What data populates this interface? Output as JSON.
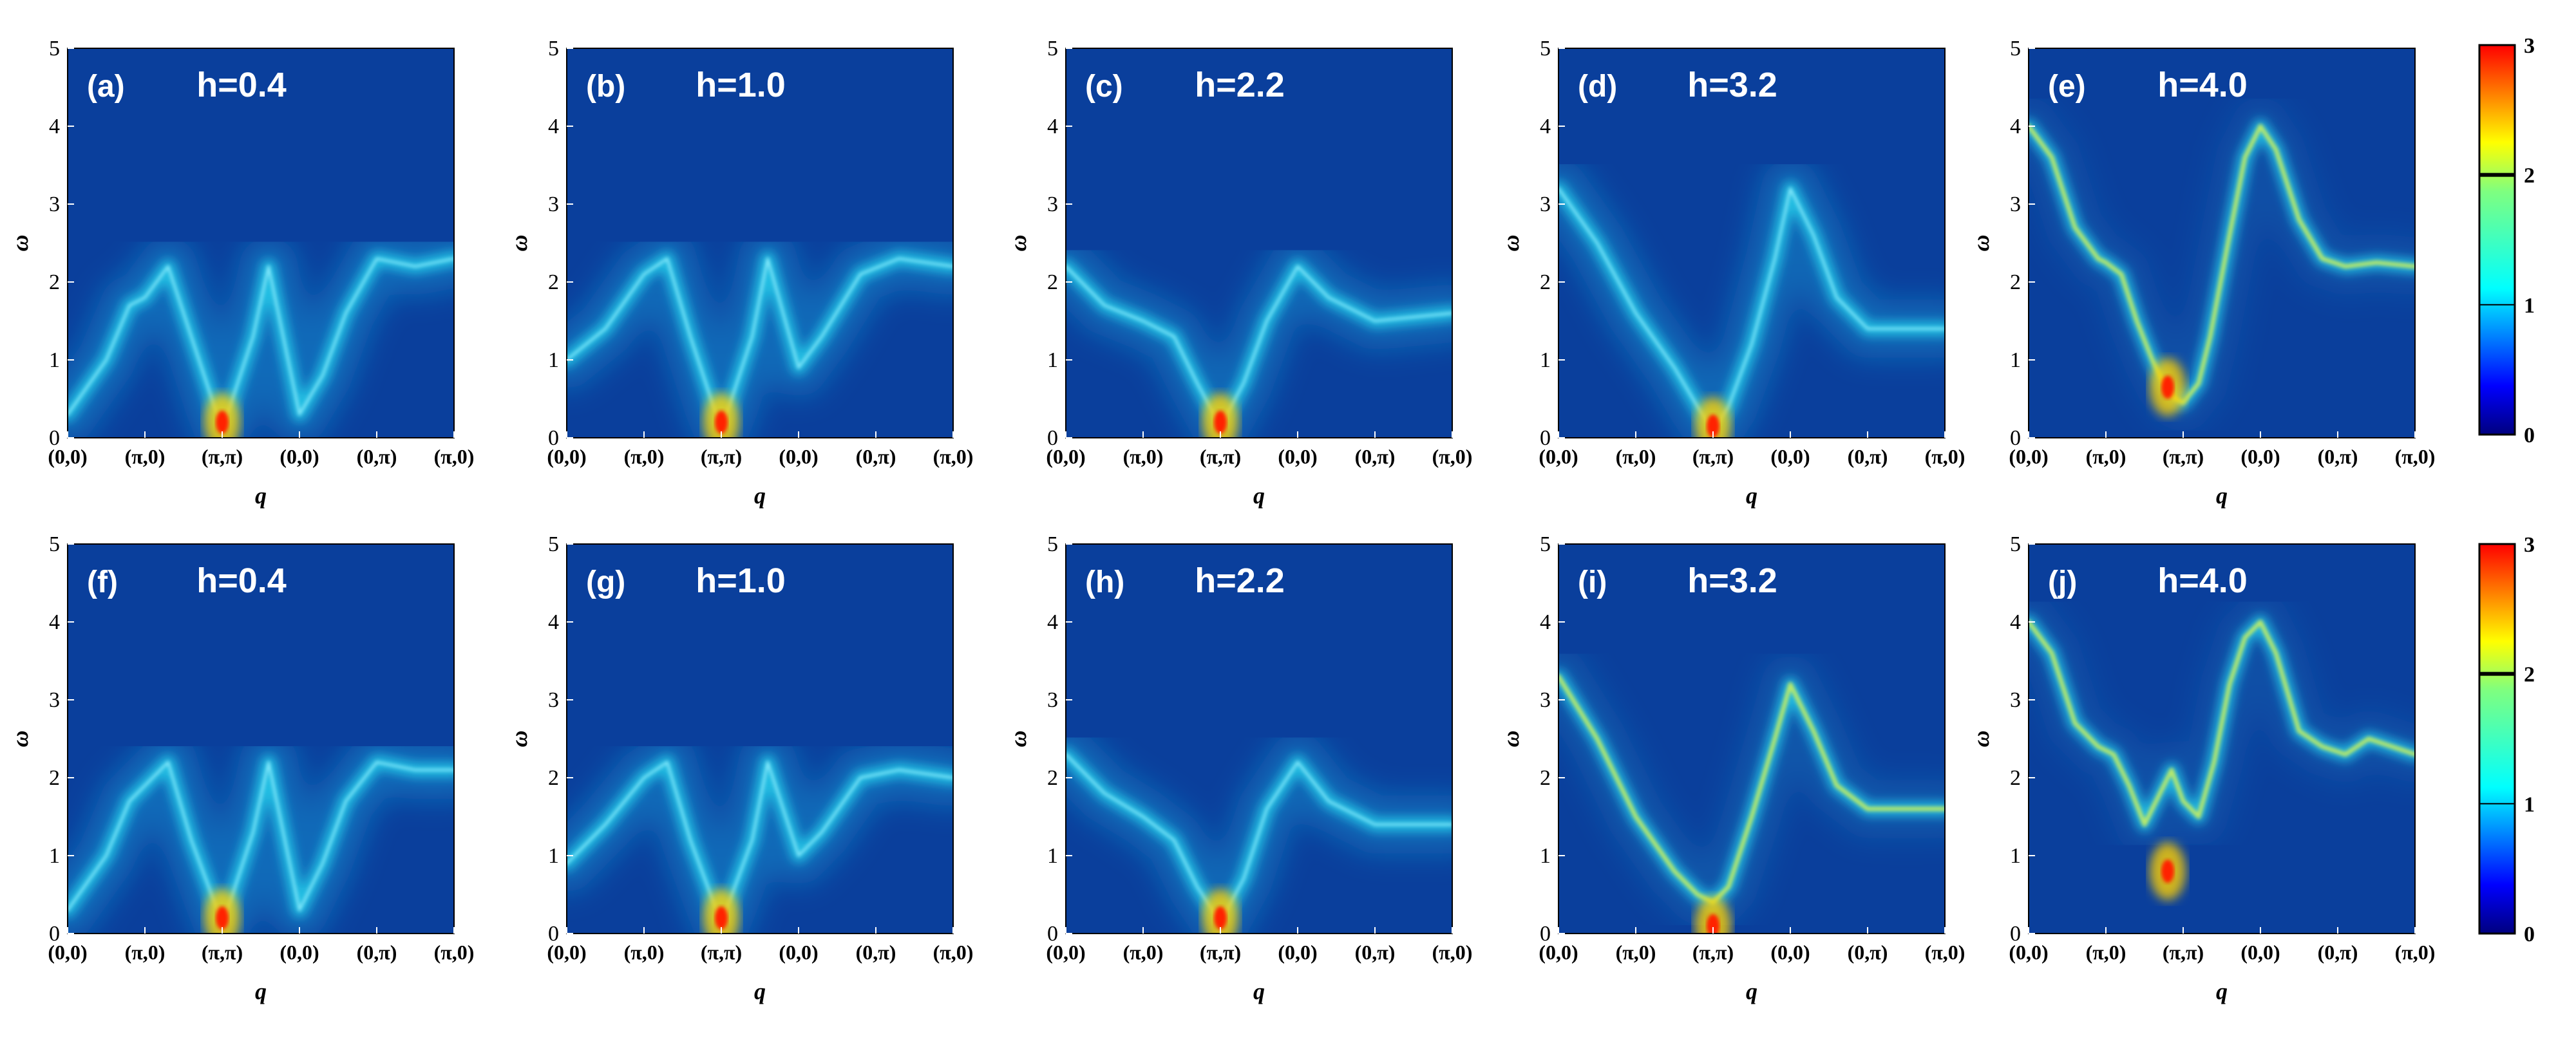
{
  "chart_data": [
    {
      "type": "heatmap",
      "panel": "(a)",
      "title": "h=0.4",
      "xlabel": "q",
      "ylabel": "ω",
      "xticks": [
        "(0,0)",
        "(π,0)",
        "(π,π)",
        "(0,0)",
        "(0,π)",
        "(π,0)"
      ],
      "yticks": [
        0,
        1,
        2,
        3,
        4,
        5
      ],
      "ylim": [
        0,
        5
      ],
      "ridge": [
        [
          0,
          0.3
        ],
        [
          0.5,
          1.0
        ],
        [
          0.8,
          1.7
        ],
        [
          1.0,
          1.8
        ],
        [
          1.3,
          2.2
        ],
        [
          1.6,
          1.3
        ],
        [
          1.9,
          0.4
        ],
        [
          2.0,
          0.15
        ],
        [
          2.1,
          0.4
        ],
        [
          2.4,
          1.3
        ],
        [
          2.6,
          2.2
        ],
        [
          3.0,
          0.3
        ],
        [
          3.3,
          0.8
        ],
        [
          3.6,
          1.6
        ],
        [
          4.0,
          2.3
        ],
        [
          4.5,
          2.2
        ],
        [
          5.0,
          2.3
        ]
      ],
      "peak": [
        2.0,
        0.2
      ],
      "glow": 0.9
    },
    {
      "type": "heatmap",
      "panel": "(b)",
      "title": "h=1.0",
      "xlabel": "q",
      "ylabel": "ω",
      "xticks": [
        "(0,0)",
        "(π,0)",
        "(π,π)",
        "(0,0)",
        "(0,π)",
        "(π,0)"
      ],
      "yticks": [
        0,
        1,
        2,
        3,
        4,
        5
      ],
      "ylim": [
        0,
        5
      ],
      "ridge": [
        [
          0,
          1.0
        ],
        [
          0.5,
          1.4
        ],
        [
          1.0,
          2.1
        ],
        [
          1.3,
          2.3
        ],
        [
          1.6,
          1.3
        ],
        [
          1.9,
          0.4
        ],
        [
          2.0,
          0.15
        ],
        [
          2.1,
          0.4
        ],
        [
          2.4,
          1.3
        ],
        [
          2.6,
          2.3
        ],
        [
          3.0,
          0.9
        ],
        [
          3.3,
          1.3
        ],
        [
          3.8,
          2.1
        ],
        [
          4.3,
          2.3
        ],
        [
          5.0,
          2.2
        ]
      ],
      "peak": [
        2.0,
        0.2
      ],
      "glow": 0.85
    },
    {
      "type": "heatmap",
      "panel": "(c)",
      "title": "h=2.2",
      "xlabel": "q",
      "ylabel": "ω",
      "xticks": [
        "(0,0)",
        "(π,0)",
        "(π,π)",
        "(0,0)",
        "(0,π)",
        "(π,0)"
      ],
      "yticks": [
        0,
        1,
        2,
        3,
        4,
        5
      ],
      "ylim": [
        0,
        5
      ],
      "ridge": [
        [
          0,
          2.2
        ],
        [
          0.5,
          1.7
        ],
        [
          1.0,
          1.5
        ],
        [
          1.4,
          1.3
        ],
        [
          1.7,
          0.7
        ],
        [
          2.0,
          0.15
        ],
        [
          2.3,
          0.7
        ],
        [
          2.6,
          1.5
        ],
        [
          3.0,
          2.2
        ],
        [
          3.4,
          1.8
        ],
        [
          4.0,
          1.5
        ],
        [
          5.0,
          1.6
        ]
      ],
      "peak": [
        2.0,
        0.2
      ],
      "glow": 0.8
    },
    {
      "type": "heatmap",
      "panel": "(d)",
      "title": "h=3.2",
      "xlabel": "q",
      "ylabel": "ω",
      "xticks": [
        "(0,0)",
        "(π,0)",
        "(π,π)",
        "(0,0)",
        "(0,π)",
        "(π,0)"
      ],
      "yticks": [
        0,
        1,
        2,
        3,
        4,
        5
      ],
      "ylim": [
        0,
        5
      ],
      "ridge": [
        [
          0,
          3.2
        ],
        [
          0.5,
          2.5
        ],
        [
          1.0,
          1.6
        ],
        [
          1.5,
          0.9
        ],
        [
          1.8,
          0.4
        ],
        [
          2.0,
          0.1
        ],
        [
          2.2,
          0.4
        ],
        [
          2.5,
          1.2
        ],
        [
          2.8,
          2.3
        ],
        [
          3.0,
          3.2
        ],
        [
          3.3,
          2.6
        ],
        [
          3.6,
          1.8
        ],
        [
          4.0,
          1.4
        ],
        [
          5.0,
          1.4
        ]
      ],
      "peak": [
        2.0,
        0.15
      ],
      "glow": 0.8
    },
    {
      "type": "heatmap",
      "panel": "(e)",
      "title": "h=4.0",
      "xlabel": "q",
      "ylabel": "ω",
      "xticks": [
        "(0,0)",
        "(π,0)",
        "(π,π)",
        "(0,0)",
        "(0,π)",
        "(π,0)"
      ],
      "yticks": [
        0,
        1,
        2,
        3,
        4,
        5
      ],
      "ylim": [
        0,
        5
      ],
      "ridge": [
        [
          0,
          4.0
        ],
        [
          0.3,
          3.6
        ],
        [
          0.6,
          2.7
        ],
        [
          0.9,
          2.3
        ],
        [
          1.0,
          2.25
        ],
        [
          1.2,
          2.1
        ],
        [
          1.4,
          1.5
        ],
        [
          1.6,
          1.0
        ],
        [
          1.75,
          0.7
        ],
        [
          1.9,
          0.5
        ],
        [
          2.0,
          0.45
        ],
        [
          2.2,
          0.7
        ],
        [
          2.35,
          1.3
        ],
        [
          2.6,
          2.6
        ],
        [
          2.8,
          3.6
        ],
        [
          3.0,
          4.0
        ],
        [
          3.2,
          3.7
        ],
        [
          3.5,
          2.8
        ],
        [
          3.8,
          2.3
        ],
        [
          4.1,
          2.2
        ],
        [
          4.5,
          2.25
        ],
        [
          5.0,
          2.2
        ]
      ],
      "peak": [
        1.8,
        0.65
      ],
      "glow": 0.15
    },
    {
      "type": "heatmap",
      "panel": "(f)",
      "title": "h=0.4",
      "xlabel": "q",
      "ylabel": "ω",
      "xticks": [
        "(0,0)",
        "(π,0)",
        "(π,π)",
        "(0,0)",
        "(0,π)",
        "(π,0)"
      ],
      "yticks": [
        0,
        1,
        2,
        3,
        4,
        5
      ],
      "ylim": [
        0,
        5
      ],
      "ridge": [
        [
          0,
          0.3
        ],
        [
          0.5,
          1.0
        ],
        [
          0.8,
          1.7
        ],
        [
          1.0,
          1.9
        ],
        [
          1.3,
          2.2
        ],
        [
          1.6,
          1.2
        ],
        [
          1.9,
          0.4
        ],
        [
          2.0,
          0.15
        ],
        [
          2.1,
          0.4
        ],
        [
          2.4,
          1.3
        ],
        [
          2.6,
          2.2
        ],
        [
          3.0,
          0.3
        ],
        [
          3.3,
          0.9
        ],
        [
          3.6,
          1.7
        ],
        [
          4.0,
          2.2
        ],
        [
          4.5,
          2.1
        ],
        [
          5.0,
          2.1
        ]
      ],
      "peak": [
        2.0,
        0.2
      ],
      "glow": 0.9
    },
    {
      "type": "heatmap",
      "panel": "(g)",
      "title": "h=1.0",
      "xlabel": "q",
      "ylabel": "ω",
      "xticks": [
        "(0,0)",
        "(π,0)",
        "(π,π)",
        "(0,0)",
        "(0,π)",
        "(π,0)"
      ],
      "yticks": [
        0,
        1,
        2,
        3,
        4,
        5
      ],
      "ylim": [
        0,
        5
      ],
      "ridge": [
        [
          0,
          0.9
        ],
        [
          0.5,
          1.4
        ],
        [
          1.0,
          2.0
        ],
        [
          1.3,
          2.2
        ],
        [
          1.6,
          1.2
        ],
        [
          1.9,
          0.4
        ],
        [
          2.0,
          0.15
        ],
        [
          2.1,
          0.4
        ],
        [
          2.4,
          1.2
        ],
        [
          2.6,
          2.2
        ],
        [
          3.0,
          1.0
        ],
        [
          3.3,
          1.3
        ],
        [
          3.8,
          2.0
        ],
        [
          4.3,
          2.1
        ],
        [
          5.0,
          2.0
        ]
      ],
      "peak": [
        2.0,
        0.2
      ],
      "glow": 0.85
    },
    {
      "type": "heatmap",
      "panel": "(h)",
      "title": "h=2.2",
      "xlabel": "q",
      "ylabel": "ω",
      "xticks": [
        "(0,0)",
        "(π,0)",
        "(π,π)",
        "(0,0)",
        "(0,π)",
        "(π,0)"
      ],
      "yticks": [
        0,
        1,
        2,
        3,
        4,
        5
      ],
      "ylim": [
        0,
        5
      ],
      "ridge": [
        [
          0,
          2.3
        ],
        [
          0.5,
          1.8
        ],
        [
          1.0,
          1.5
        ],
        [
          1.4,
          1.2
        ],
        [
          1.7,
          0.6
        ],
        [
          2.0,
          0.15
        ],
        [
          2.3,
          0.7
        ],
        [
          2.6,
          1.6
        ],
        [
          3.0,
          2.2
        ],
        [
          3.4,
          1.7
        ],
        [
          4.0,
          1.4
        ],
        [
          5.0,
          1.4
        ]
      ],
      "peak": [
        2.0,
        0.2
      ],
      "glow": 0.8
    },
    {
      "type": "heatmap",
      "panel": "(i)",
      "title": "h=3.2",
      "xlabel": "q",
      "ylabel": "ω",
      "xticks": [
        "(0,0)",
        "(π,0)",
        "(π,π)",
        "(0,0)",
        "(0,π)",
        "(π,0)"
      ],
      "yticks": [
        0,
        1,
        2,
        3,
        4,
        5
      ],
      "ylim": [
        0,
        5
      ],
      "ridge": [
        [
          0,
          3.3
        ],
        [
          0.5,
          2.5
        ],
        [
          1.0,
          1.5
        ],
        [
          1.5,
          0.8
        ],
        [
          1.8,
          0.5
        ],
        [
          2.0,
          0.4
        ],
        [
          2.2,
          0.6
        ],
        [
          2.5,
          1.5
        ],
        [
          2.8,
          2.5
        ],
        [
          3.0,
          3.2
        ],
        [
          3.3,
          2.6
        ],
        [
          3.6,
          1.9
        ],
        [
          4.0,
          1.6
        ],
        [
          5.0,
          1.6
        ]
      ],
      "peak": [
        2.0,
        0.1
      ],
      "glow": 0.3
    },
    {
      "type": "heatmap",
      "panel": "(j)",
      "title": "h=4.0",
      "xlabel": "q",
      "ylabel": "ω",
      "xticks": [
        "(0,0)",
        "(π,0)",
        "(π,π)",
        "(0,0)",
        "(0,π)",
        "(π,0)"
      ],
      "yticks": [
        0,
        1,
        2,
        3,
        4,
        5
      ],
      "ylim": [
        0,
        5
      ],
      "ridge": [
        [
          0,
          4.0
        ],
        [
          0.3,
          3.6
        ],
        [
          0.6,
          2.7
        ],
        [
          0.9,
          2.4
        ],
        [
          1.1,
          2.3
        ],
        [
          1.3,
          1.9
        ],
        [
          1.5,
          1.4
        ],
        [
          1.7,
          1.8
        ],
        [
          1.85,
          2.1
        ],
        [
          2.0,
          1.7
        ],
        [
          2.2,
          1.5
        ],
        [
          2.4,
          2.2
        ],
        [
          2.6,
          3.2
        ],
        [
          2.8,
          3.8
        ],
        [
          3.0,
          4.0
        ],
        [
          3.2,
          3.6
        ],
        [
          3.5,
          2.6
        ],
        [
          3.8,
          2.4
        ],
        [
          4.1,
          2.3
        ],
        [
          4.4,
          2.5
        ],
        [
          4.7,
          2.4
        ],
        [
          5.0,
          2.3
        ]
      ],
      "peak": [
        1.8,
        0.8
      ],
      "glow": 0.15
    },
    {
      "type": "heatmap",
      "panel": "colorbar-top",
      "cbar_ticks": [
        0,
        1,
        2,
        3
      ],
      "range": [
        0,
        3
      ]
    },
    {
      "type": "heatmap",
      "panel": "colorbar-bottom",
      "cbar_ticks": [
        0,
        1,
        2,
        3
      ],
      "range": [
        0,
        3
      ]
    }
  ],
  "colors": {
    "background": "#0a3f9c",
    "low": "#00008b",
    "mid": "#00e5ff",
    "high": "#ff0000"
  }
}
